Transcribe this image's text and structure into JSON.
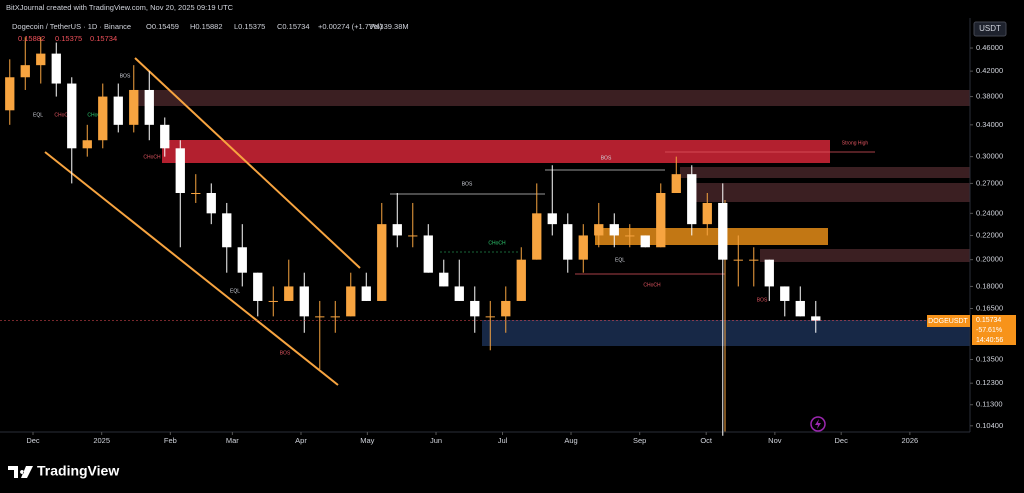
{
  "header": "BitXJournal created with TradingView.com, Nov 20, 2025 09:19 UTC",
  "legend": {
    "symbol": "Dogecoin / TetherUS · 1D · Binance",
    "open": "O0.15459",
    "high": "H0.15882",
    "low": "L0.15375",
    "close": "C0.15734",
    "change": "+0.00274 (+1.77%)",
    "volume": "Vol339.38M",
    "row2": [
      "0.15882",
      "0.15375",
      "0.15734"
    ]
  },
  "currency_button": "USDT",
  "price_label": {
    "symbol": "DOGEUSDT",
    "price": "0.15734",
    "change": "-57.61%",
    "countdown": "14:40:56"
  },
  "annotations": [
    "BOS",
    "BOS",
    "CHoCH",
    "Strong High",
    "EQL",
    "CHoCH",
    "CHoCH",
    "BOS",
    "CHoCH",
    "EQL",
    "BOS",
    "CHoCH",
    "EQL",
    "BOS"
  ],
  "footer": "TradingView",
  "chart_data": {
    "type": "candlestick",
    "log_scale": true,
    "grid": false,
    "up_color": "#f7a440",
    "down_color": "#ffffff",
    "open": [
      0.36,
      0.41,
      0.43,
      0.45,
      0.4,
      0.31,
      0.32,
      0.38,
      0.34,
      0.39,
      0.34,
      0.31,
      0.26,
      0.26,
      0.24,
      0.21,
      0.19,
      0.17,
      0.17,
      0.18,
      0.16,
      0.16,
      0.16,
      0.18,
      0.17,
      0.23,
      0.22,
      0.22,
      0.19,
      0.18,
      0.17,
      0.16,
      0.16,
      0.17,
      0.2,
      0.24,
      0.23,
      0.2,
      0.22,
      0.23,
      0.22,
      0.22,
      0.21,
      0.26,
      0.28,
      0.23,
      0.25,
      0.2,
      0.2,
      0.2,
      0.18,
      0.17,
      0.16
    ],
    "high": [
      0.44,
      0.48,
      0.48,
      0.47,
      0.41,
      0.34,
      0.4,
      0.4,
      0.43,
      0.42,
      0.35,
      0.32,
      0.28,
      0.27,
      0.25,
      0.23,
      0.19,
      0.18,
      0.2,
      0.19,
      0.17,
      0.17,
      0.19,
      0.19,
      0.25,
      0.26,
      0.25,
      0.23,
      0.2,
      0.2,
      0.18,
      0.17,
      0.18,
      0.21,
      0.27,
      0.29,
      0.24,
      0.23,
      0.25,
      0.24,
      0.23,
      0.22,
      0.27,
      0.3,
      0.29,
      0.26,
      0.27,
      0.22,
      0.21,
      0.2,
      0.18,
      0.18,
      0.17
    ],
    "low": [
      0.34,
      0.39,
      0.4,
      0.38,
      0.27,
      0.3,
      0.31,
      0.33,
      0.33,
      0.32,
      0.3,
      0.21,
      0.25,
      0.23,
      0.19,
      0.18,
      0.16,
      0.16,
      0.17,
      0.15,
      0.13,
      0.15,
      0.16,
      0.17,
      0.17,
      0.21,
      0.21,
      0.19,
      0.18,
      0.17,
      0.15,
      0.14,
      0.15,
      0.17,
      0.2,
      0.22,
      0.19,
      0.19,
      0.21,
      0.21,
      0.21,
      0.21,
      0.21,
      0.26,
      0.22,
      0.22,
      0.1,
      0.18,
      0.18,
      0.17,
      0.16,
      0.16,
      0.15
    ],
    "close": [
      0.41,
      0.43,
      0.45,
      0.4,
      0.31,
      0.32,
      0.38,
      0.34,
      0.39,
      0.34,
      0.31,
      0.26,
      0.26,
      0.24,
      0.21,
      0.19,
      0.17,
      0.17,
      0.18,
      0.16,
      0.16,
      0.16,
      0.18,
      0.17,
      0.23,
      0.22,
      0.22,
      0.19,
      0.18,
      0.17,
      0.16,
      0.16,
      0.17,
      0.2,
      0.24,
      0.23,
      0.2,
      0.22,
      0.23,
      0.22,
      0.22,
      0.21,
      0.26,
      0.28,
      0.23,
      0.25,
      0.2,
      0.2,
      0.2,
      0.18,
      0.17,
      0.16,
      0.15734
    ],
    "xlim": [
      -0.13,
      62.45
    ],
    "xticks": [
      {
        "value": 2,
        "label": "Dec"
      },
      {
        "value": 6.43,
        "label": "2025"
      },
      {
        "value": 10.86,
        "label": "Feb"
      },
      {
        "value": 14.86,
        "label": "Mar"
      },
      {
        "value": 19.29,
        "label": "Apr"
      },
      {
        "value": 23.57,
        "label": "May"
      },
      {
        "value": 28,
        "label": "Jun"
      },
      {
        "value": 32.29,
        "label": "Jul"
      },
      {
        "value": 36.71,
        "label": "Aug"
      },
      {
        "value": 41.14,
        "label": "Sep"
      },
      {
        "value": 45.43,
        "label": "Oct"
      },
      {
        "value": 49.86,
        "label": "Nov"
      },
      {
        "value": 54.14,
        "label": "Dec"
      },
      {
        "value": 58.57,
        "label": "2026"
      }
    ],
    "ylim": [
      0.1015,
      0.5177
    ],
    "yticks": [
      {
        "value": 0.46,
        "label": "0.46000"
      },
      {
        "value": 0.42,
        "label": "0.42000"
      },
      {
        "value": 0.38,
        "label": "0.38000"
      },
      {
        "value": 0.34,
        "label": "0.34000"
      },
      {
        "value": 0.3,
        "label": "0.30000"
      },
      {
        "value": 0.27,
        "label": "0.27000"
      },
      {
        "value": 0.24,
        "label": "0.24000"
      },
      {
        "value": 0.22,
        "label": "0.22000"
      },
      {
        "value": 0.2,
        "label": "0.20000"
      },
      {
        "value": 0.18,
        "label": "0.18000"
      },
      {
        "value": 0.165,
        "label": "0.16500"
      },
      {
        "value": 0.135,
        "label": "0.13500"
      },
      {
        "value": 0.123,
        "label": "0.12300"
      },
      {
        "value": 0.113,
        "label": "0.11300"
      },
      {
        "value": 0.104,
        "label": "0.10400"
      }
    ]
  }
}
